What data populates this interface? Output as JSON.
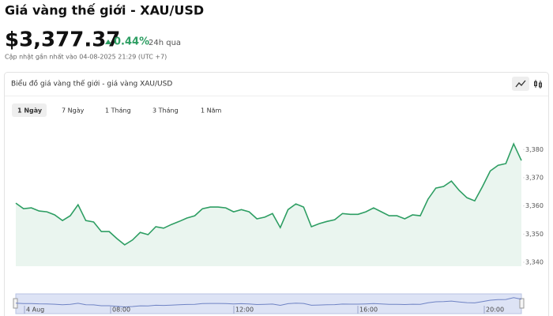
{
  "header": {
    "title": "Giá vàng thế giới - XAU/USD",
    "price": "$3,377.37",
    "change": "0.44%",
    "period": "24h qua",
    "updated": "Cập nhật gần nhất vào 04-08-2025 21:29 (UTC +7)"
  },
  "card": {
    "title": "Biểu đồ giá vàng thế giới - giá vàng XAU/USD",
    "tabs": [
      "1 Ngày",
      "7 Ngày",
      "1 Tháng",
      "3 Tháng",
      "1 Năm"
    ]
  },
  "chart_data": {
    "type": "area",
    "color": "#2e9e63",
    "values": [
      3361,
      3359,
      3359.3,
      3358.2,
      3357.9,
      3356.8,
      3354.8,
      3356.5,
      3360.4,
      3354.8,
      3354.3,
      3350.9,
      3350.9,
      3348.4,
      3346.2,
      3347.9,
      3350.6,
      3349.8,
      3352.6,
      3352.1,
      3353.4,
      3354.5,
      3355.7,
      3356.5,
      3359,
      3359.6,
      3359.6,
      3359.3,
      3357.9,
      3358.7,
      3357.9,
      3355.4,
      3356,
      3357.3,
      3352.3,
      3358.7,
      3360.7,
      3359.6,
      3352.6,
      3353.7,
      3354.5,
      3355.1,
      3357.3,
      3357,
      3357,
      3357.9,
      3359.3,
      3357.9,
      3356.5,
      3356.5,
      3355.4,
      3356.8,
      3356.5,
      3362.4,
      3366.3,
      3366.9,
      3368.8,
      3365.5,
      3362.9,
      3361.8,
      3366.9,
      3372.4,
      3374.4,
      3375,
      3382,
      3376.1
    ],
    "ylim": [
      3338.6,
      3391
    ],
    "yticks": [
      {
        "value": 3340,
        "label": "3,340"
      },
      {
        "value": 3350,
        "label": "3,350"
      },
      {
        "value": 3360,
        "label": "3,360"
      },
      {
        "value": 3370,
        "label": "3,370"
      },
      {
        "value": 3380,
        "label": "3,380"
      }
    ],
    "grid": false,
    "navigator_labels": [
      "4 Aug",
      "08:00",
      "12:00",
      "16:00",
      "20:00"
    ]
  }
}
